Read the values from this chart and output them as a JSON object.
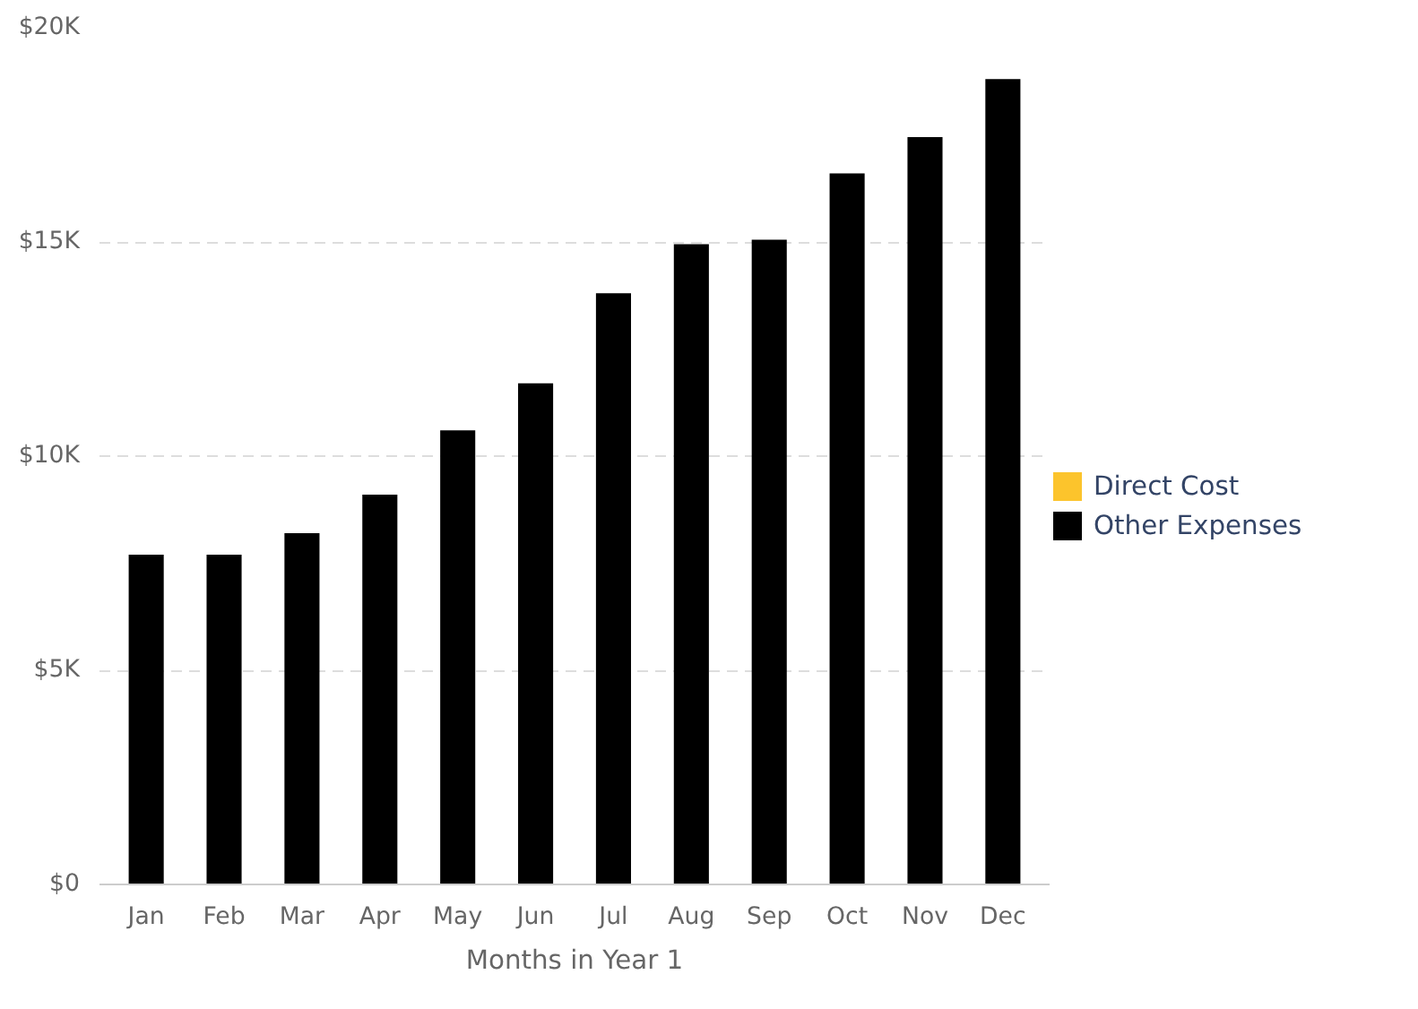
{
  "chart_data": {
    "type": "bar",
    "xlabel": "Months in Year 1",
    "categories": [
      "Jan",
      "Feb",
      "Mar",
      "Apr",
      "May",
      "Jun",
      "Jul",
      "Aug",
      "Sep",
      "Oct",
      "Nov",
      "Dec"
    ],
    "stacked": true,
    "series": [
      {
        "name": "Direct Cost",
        "color": "#fcc42c",
        "values": [
          0,
          0,
          0,
          0,
          0,
          0,
          0,
          0,
          0,
          0,
          0,
          0
        ]
      },
      {
        "name": "Other Expenses",
        "color": "#000000",
        "values": [
          7700,
          7700,
          8200,
          9100,
          10600,
          11700,
          13800,
          14950,
          15050,
          16600,
          17450,
          18800
        ]
      }
    ],
    "ylim": [
      0,
      20000
    ],
    "yticks": [
      {
        "value": 0,
        "label": "$0"
      },
      {
        "value": 5000,
        "label": "$5K"
      },
      {
        "value": 10000,
        "label": "$10K"
      },
      {
        "value": 15000,
        "label": "$15K"
      },
      {
        "value": 20000,
        "label": "$20K"
      }
    ],
    "grid": "y",
    "legend": "right"
  }
}
